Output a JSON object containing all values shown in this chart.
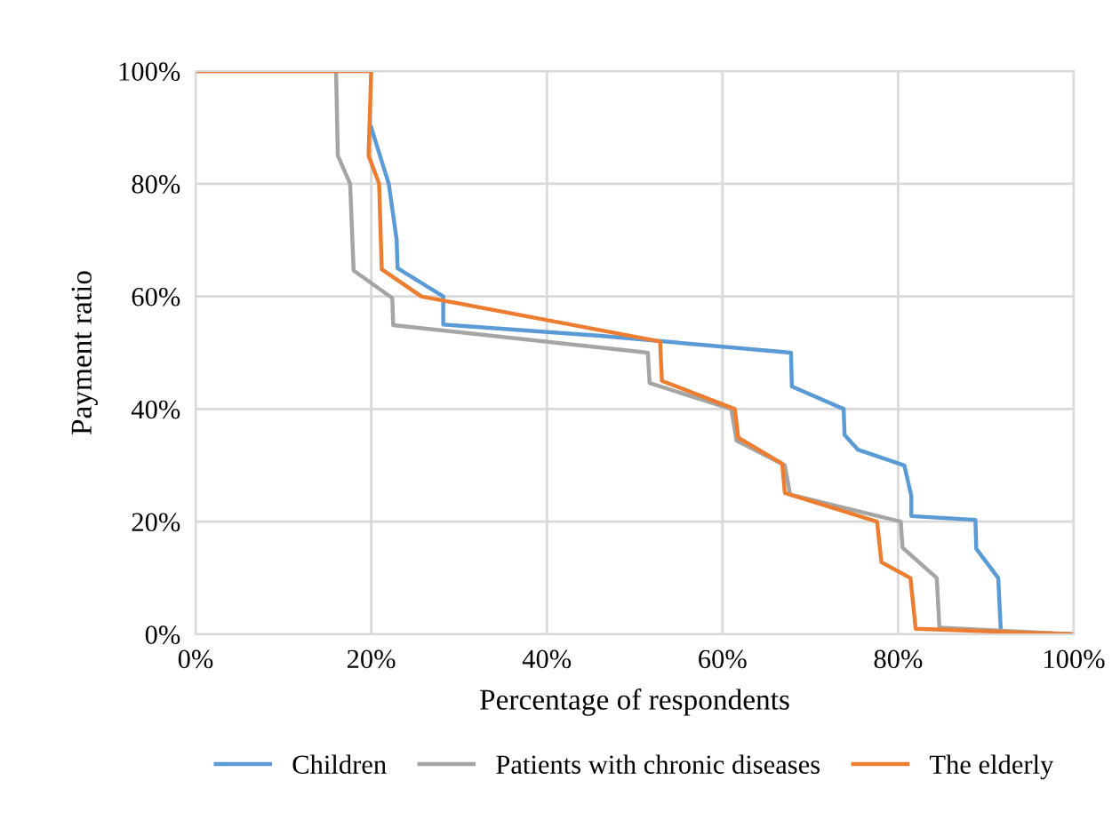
{
  "chart_data": {
    "type": "line",
    "xlabel": "Percentage of respondents",
    "ylabel": "Payment ratio",
    "xlim": [
      0,
      100
    ],
    "ylim": [
      0,
      100
    ],
    "xticks": [
      {
        "value": 0,
        "label": "0%"
      },
      {
        "value": 20,
        "label": "20%"
      },
      {
        "value": 40,
        "label": "40%"
      },
      {
        "value": 60,
        "label": "60%"
      },
      {
        "value": 80,
        "label": "80%"
      },
      {
        "value": 100,
        "label": "100%"
      }
    ],
    "yticks": [
      {
        "value": 0,
        "label": "0%"
      },
      {
        "value": 20,
        "label": "20%"
      },
      {
        "value": 40,
        "label": "40%"
      },
      {
        "value": 60,
        "label": "60%"
      },
      {
        "value": 80,
        "label": "80%"
      },
      {
        "value": 100,
        "label": "100%"
      }
    ],
    "grid": true,
    "legend": "bottom",
    "marker": "none",
    "line_style": "solid",
    "series": [
      {
        "name": "Children",
        "color": "#5b9bd5",
        "x": [
          20,
          22,
          22.9,
          23,
          28.2,
          28.2,
          46.1,
          67.8,
          67.9,
          73.8,
          73.9,
          75.4,
          80.7,
          81.5,
          81.5,
          88.8,
          88.9,
          91.4,
          91.7,
          100
        ],
        "values": [
          90,
          80,
          70,
          65,
          60,
          55,
          53,
          50,
          44,
          40,
          35.4,
          32.8,
          30,
          24.6,
          21,
          20.3,
          15.2,
          10,
          0.5,
          0
        ]
      },
      {
        "name": "Patients with chronic diseases",
        "color": "#a5a5a5",
        "x": [
          0,
          16,
          16.2,
          17.6,
          18,
          22.4,
          22.5,
          51.5,
          51.7,
          61,
          61.6,
          67.1,
          67.7,
          80.3,
          80.5,
          84.4,
          84.7,
          100
        ],
        "values": [
          100,
          100,
          85,
          80,
          64.6,
          59.7,
          54.9,
          50,
          44.6,
          40,
          34.4,
          30,
          24.8,
          20,
          15.4,
          10,
          1.2,
          0
        ]
      },
      {
        "name": "The elderly",
        "color": "#ed7d31",
        "x": [
          0,
          20,
          19.7,
          20.9,
          21.2,
          25.7,
          52.9,
          53.1,
          61.4,
          61.8,
          66.8,
          67.1,
          77.6,
          78.1,
          81.4,
          82,
          100
        ],
        "values": [
          100,
          100,
          85,
          80,
          64.8,
          60,
          52,
          45,
          40,
          34.9,
          30.3,
          25.1,
          20,
          12.8,
          10,
          1,
          0
        ]
      }
    ]
  }
}
